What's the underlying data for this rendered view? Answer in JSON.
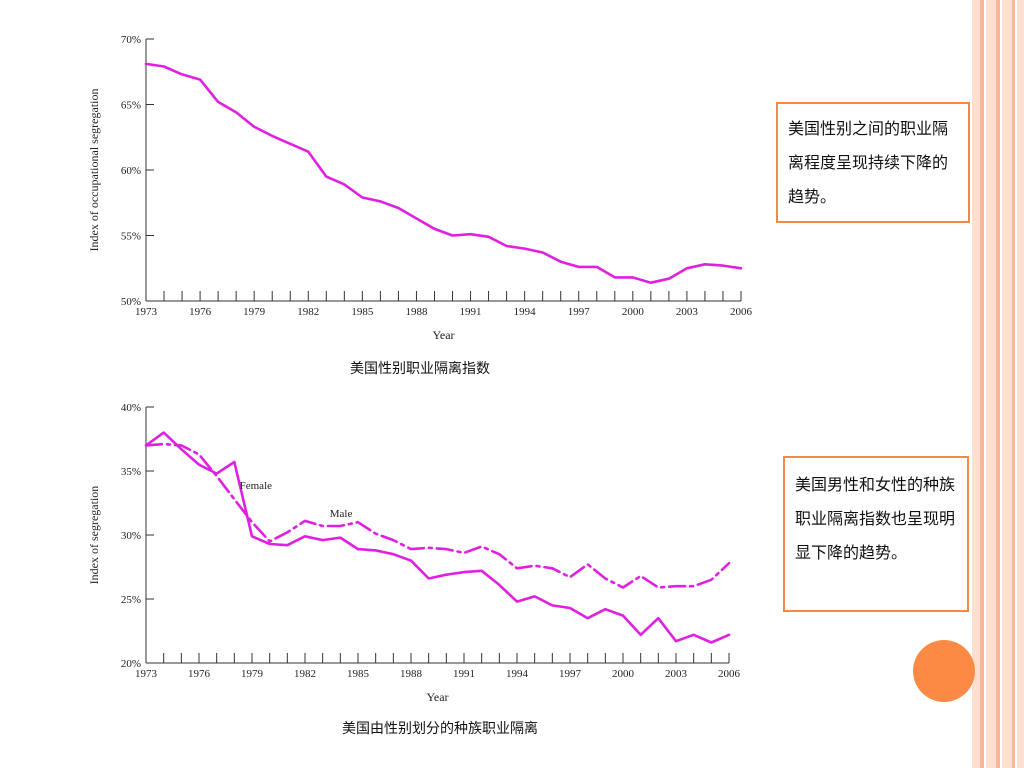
{
  "colors": {
    "line": "#e020e0",
    "accent": "#f08a4b",
    "stripe_light": "#fde0d2",
    "stripe_mid": "#f7b89a"
  },
  "captions": {
    "top": "美国性别职业隔离指数",
    "bottom": "美国由性别划分的种族职业隔离"
  },
  "notes": {
    "top": "美国性别之间的职业隔离程度呈现持续下降的趋势。",
    "bottom": "美国男性和女性的种族职业隔离指数也呈现明显下降的趋势。"
  },
  "chart_data": [
    {
      "type": "line",
      "title": "",
      "xlabel": "Year",
      "ylabel": "Index of occupational segregation",
      "xlim": [
        1973,
        2006
      ],
      "ylim": [
        50,
        70
      ],
      "xticks": [
        1973,
        1976,
        1979,
        1982,
        1985,
        1988,
        1991,
        1994,
        1997,
        2000,
        2003,
        2006
      ],
      "yticks": [
        50,
        55,
        60,
        65,
        70
      ],
      "ytick_labels": [
        "50%",
        "55%",
        "60%",
        "65%",
        "70%"
      ],
      "series": [
        {
          "style": "solid",
          "x": [
            1973,
            1974,
            1975,
            1976,
            1977,
            1978,
            1979,
            1980,
            1981,
            1982,
            1983,
            1984,
            1985,
            1986,
            1987,
            1988,
            1989,
            1990,
            1991,
            1992,
            1993,
            1994,
            1995,
            1996,
            1997,
            1998,
            1999,
            2000,
            2001,
            2002,
            2003,
            2004,
            2005,
            2006
          ],
          "y": [
            68.1,
            67.9,
            67.3,
            66.9,
            65.2,
            64.4,
            63.3,
            62.6,
            62.0,
            61.4,
            59.5,
            58.9,
            57.9,
            57.6,
            57.1,
            56.3,
            55.5,
            55.0,
            55.1,
            54.9,
            54.2,
            54.0,
            53.7,
            53.0,
            52.6,
            52.6,
            51.8,
            51.8,
            51.4,
            51.7,
            52.5,
            52.8,
            52.7,
            52.5
          ]
        }
      ]
    },
    {
      "type": "line",
      "title": "",
      "xlabel": "Year",
      "ylabel": "Index of segregation",
      "xlim": [
        1973,
        2006
      ],
      "ylim": [
        20,
        40
      ],
      "xticks": [
        1973,
        1976,
        1979,
        1982,
        1985,
        1988,
        1991,
        1994,
        1997,
        2000,
        2003,
        2006
      ],
      "yticks": [
        20,
        25,
        30,
        35,
        40
      ],
      "ytick_labels": [
        "20%",
        "25%",
        "30%",
        "35%",
        "40%"
      ],
      "series": [
        {
          "name": "Female",
          "style": "solid",
          "x": [
            1973,
            1974,
            1975,
            1976,
            1977,
            1978,
            1979,
            1980,
            1981,
            1982,
            1983,
            1984,
            1985,
            1986,
            1987,
            1988,
            1989,
            1990,
            1991,
            1992,
            1993,
            1994,
            1995,
            1996,
            1997,
            1998,
            1999,
            2000,
            2001,
            2002,
            2003,
            2004,
            2005,
            2006
          ],
          "y": [
            37.0,
            38.0,
            36.7,
            35.5,
            34.8,
            35.7,
            29.9,
            29.3,
            29.2,
            29.9,
            29.6,
            29.8,
            28.9,
            28.8,
            28.5,
            28.0,
            26.6,
            26.9,
            27.1,
            27.2,
            26.1,
            24.8,
            25.2,
            24.5,
            24.3,
            23.5,
            24.2,
            23.7,
            22.2,
            23.5,
            21.7,
            22.2,
            21.6,
            22.2
          ]
        },
        {
          "name": "Male",
          "style": "dashed",
          "x": [
            1973,
            1974,
            1975,
            1976,
            1977,
            1978,
            1979,
            1980,
            1981,
            1982,
            1983,
            1984,
            1985,
            1986,
            1987,
            1988,
            1989,
            1990,
            1991,
            1992,
            1993,
            1994,
            1995,
            1996,
            1997,
            1998,
            1999,
            2000,
            2001,
            2002,
            2003,
            2004,
            2005,
            2006
          ],
          "y": [
            37.0,
            37.1,
            37.0,
            36.3,
            34.6,
            32.8,
            31.0,
            29.5,
            30.2,
            31.1,
            30.7,
            30.7,
            31.0,
            30.1,
            29.6,
            28.9,
            29.0,
            28.9,
            28.6,
            29.1,
            28.5,
            27.4,
            27.6,
            27.4,
            26.7,
            27.7,
            26.6,
            25.9,
            26.8,
            25.9,
            26.0,
            26.0,
            26.5,
            27.8
          ]
        }
      ]
    }
  ]
}
